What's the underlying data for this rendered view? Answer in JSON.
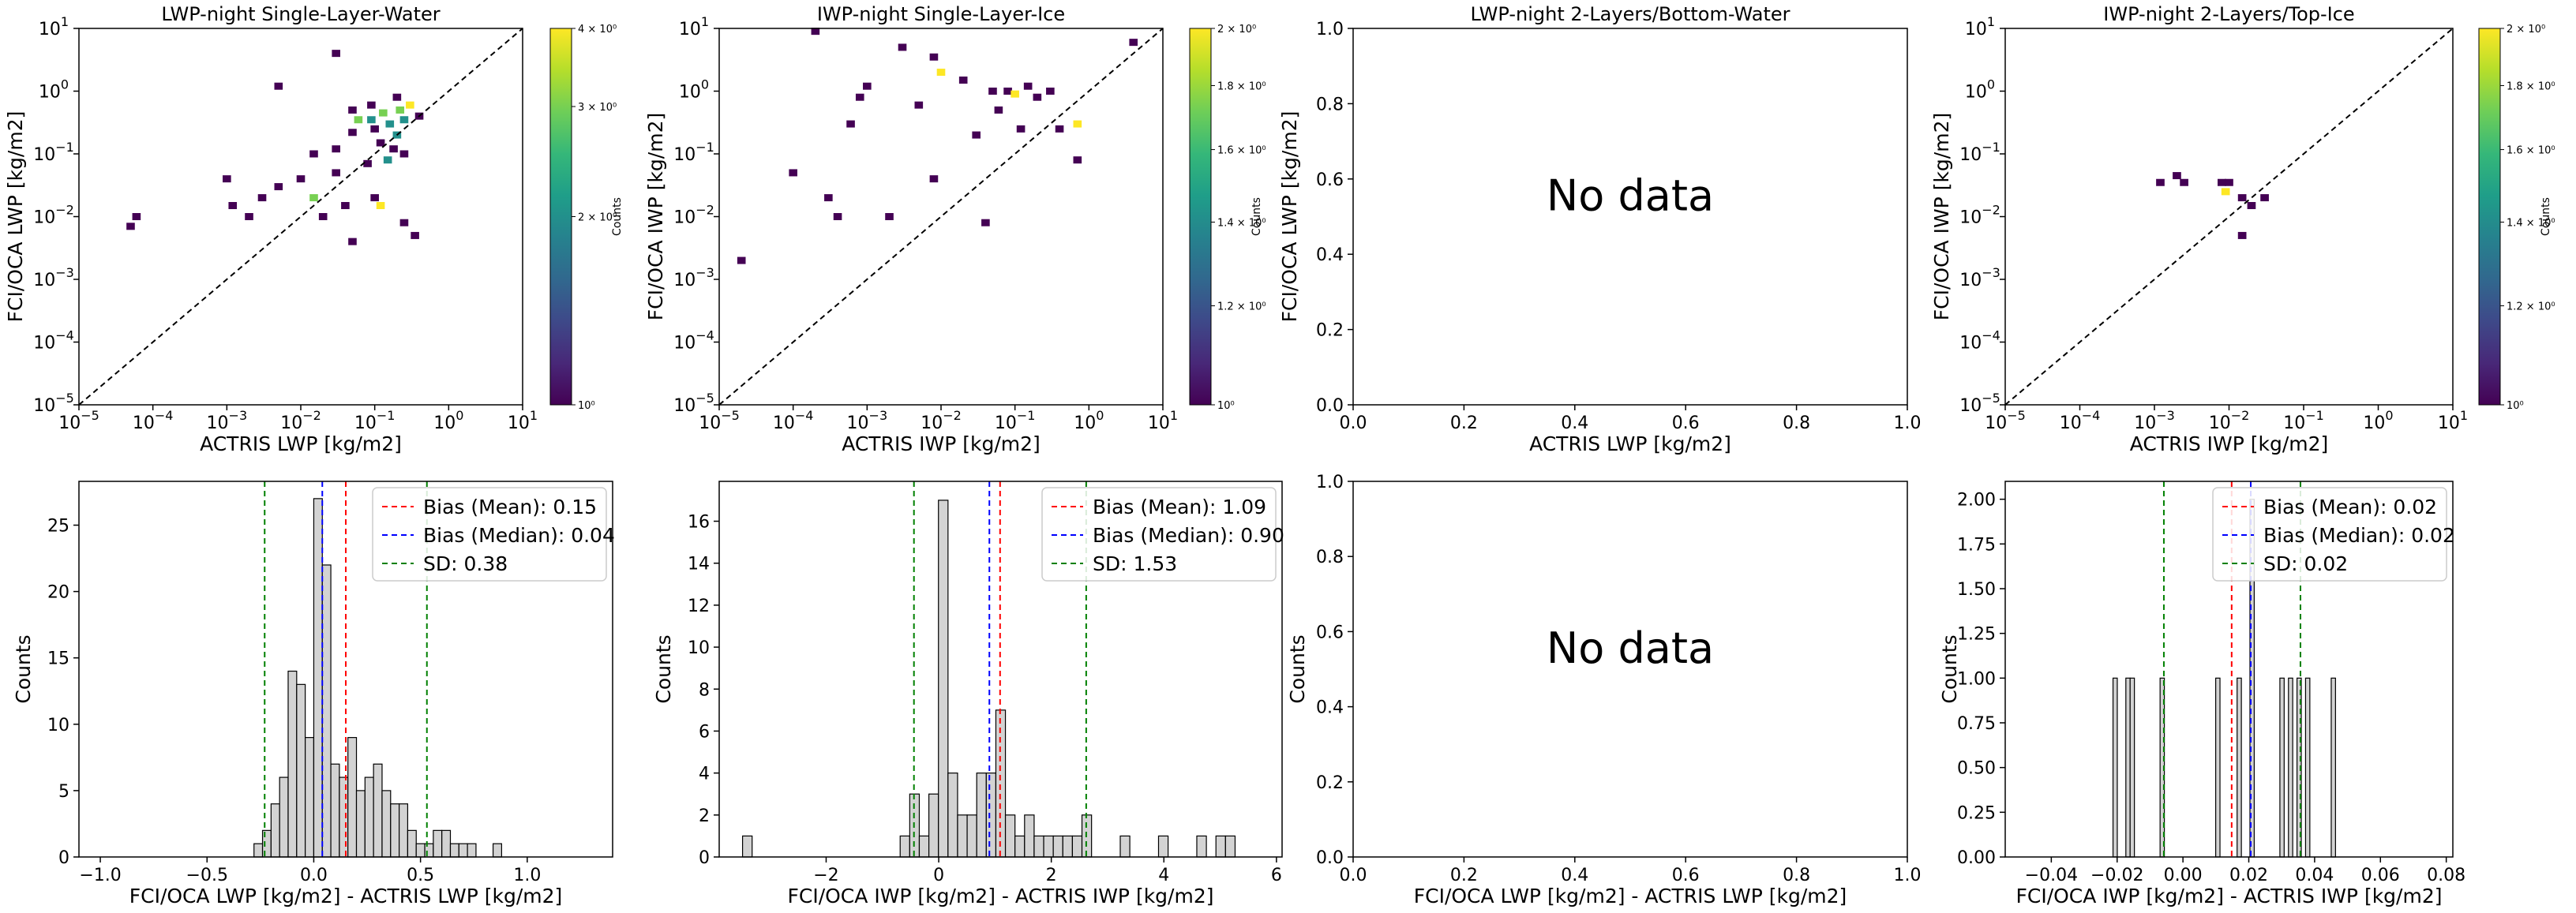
{
  "colors": {
    "viridis": [
      "#440154",
      "#482878",
      "#3e4989",
      "#31688e",
      "#26828e",
      "#1f9e89",
      "#35b779",
      "#6ece58",
      "#b5de2b",
      "#fde725"
    ],
    "hist_fill": "#d3d3d3",
    "mean_line": "#ff0000",
    "median_line": "#0000ff",
    "sd_line": "#008000",
    "one_to_one": "#000000"
  },
  "chart_data": [
    {
      "type": "heatmap",
      "title": "LWP-night Single-Layer-Water",
      "xlabel": "ACTRIS LWP [kg/m2]",
      "ylabel": "FCI/OCA LWP [kg/m2]",
      "xscale": "log",
      "yscale": "log",
      "xlim": [
        1e-05,
        10
      ],
      "ylim": [
        1e-05,
        10
      ],
      "one_to_one_line": true,
      "colorbar": {
        "label": "Counts",
        "scale": "log",
        "range": [
          1,
          4
        ],
        "ticks": [
          1,
          2,
          3,
          4
        ],
        "tick_labels": [
          "10⁰",
          "2 × 10⁰",
          "3 × 10⁰",
          "4 × 10⁰"
        ]
      },
      "cells": [
        [
          0.03,
          4.0,
          1
        ],
        [
          0.005,
          1.2,
          1
        ],
        [
          0.2,
          0.8,
          1
        ],
        [
          0.3,
          0.6,
          4
        ],
        [
          0.22,
          0.5,
          3
        ],
        [
          0.13,
          0.45,
          3
        ],
        [
          0.09,
          0.35,
          2
        ],
        [
          0.06,
          0.35,
          3
        ],
        [
          0.16,
          0.3,
          2
        ],
        [
          0.25,
          0.35,
          2
        ],
        [
          0.1,
          0.25,
          1
        ],
        [
          0.05,
          0.22,
          1
        ],
        [
          0.2,
          0.2,
          2
        ],
        [
          0.12,
          0.15,
          1
        ],
        [
          0.03,
          0.12,
          1
        ],
        [
          0.015,
          0.1,
          1
        ],
        [
          0.15,
          0.08,
          2
        ],
        [
          0.08,
          0.07,
          1
        ],
        [
          0.25,
          0.1,
          1
        ],
        [
          0.03,
          0.05,
          1
        ],
        [
          0.01,
          0.04,
          1
        ],
        [
          0.005,
          0.03,
          1
        ],
        [
          0.003,
          0.02,
          1
        ],
        [
          0.1,
          0.02,
          1
        ],
        [
          0.12,
          0.015,
          4
        ],
        [
          0.04,
          0.015,
          1
        ],
        [
          0.02,
          0.01,
          1
        ],
        [
          0.0012,
          0.015,
          1
        ],
        [
          0.002,
          0.01,
          1
        ],
        [
          0.25,
          0.008,
          1
        ],
        [
          0.35,
          0.005,
          1
        ],
        [
          0.05,
          0.004,
          1
        ],
        [
          6e-05,
          0.01,
          1
        ],
        [
          5e-05,
          0.007,
          1
        ],
        [
          0.4,
          0.4,
          1
        ],
        [
          0.001,
          0.04,
          1
        ],
        [
          0.015,
          0.02,
          3
        ],
        [
          0.05,
          0.5,
          1
        ],
        [
          0.18,
          0.12,
          1
        ],
        [
          0.09,
          0.6,
          1
        ]
      ]
    },
    {
      "type": "heatmap",
      "title": "IWP-night Single-Layer-Ice",
      "xlabel": "ACTRIS IWP [kg/m2]",
      "ylabel": "FCI/OCA IWP [kg/m2]",
      "xscale": "log",
      "yscale": "log",
      "xlim": [
        1e-05,
        10
      ],
      "ylim": [
        1e-05,
        10
      ],
      "one_to_one_line": true,
      "colorbar": {
        "label": "Counts",
        "scale": "log",
        "range": [
          1,
          2
        ],
        "ticks": [
          1,
          1.2,
          1.4,
          1.6,
          1.8,
          2
        ],
        "tick_labels": [
          "10⁰",
          "1.2 × 10⁰",
          "1.4 × 10⁰",
          "1.6 × 10⁰",
          "1.8 × 10⁰",
          "2 × 10⁰"
        ]
      },
      "cells": [
        [
          0.0002,
          9.0,
          1
        ],
        [
          0.003,
          5.0,
          1
        ],
        [
          0.008,
          3.5,
          1
        ],
        [
          0.01,
          2.0,
          2
        ],
        [
          0.02,
          1.5,
          1
        ],
        [
          0.15,
          1.2,
          1
        ],
        [
          0.08,
          1.0,
          1
        ],
        [
          0.1,
          0.9,
          2
        ],
        [
          0.2,
          0.8,
          1
        ],
        [
          4.0,
          6.0,
          1
        ],
        [
          0.0008,
          0.8,
          1
        ],
        [
          0.005,
          0.6,
          1
        ],
        [
          0.06,
          0.5,
          1
        ],
        [
          0.0006,
          0.3,
          1
        ],
        [
          0.03,
          0.2,
          1
        ],
        [
          0.12,
          0.25,
          1
        ],
        [
          0.4,
          0.25,
          1
        ],
        [
          0.7,
          0.3,
          2
        ],
        [
          0.0001,
          0.05,
          1
        ],
        [
          0.0003,
          0.02,
          1
        ],
        [
          0.0004,
          0.01,
          1
        ],
        [
          0.002,
          0.01,
          1
        ],
        [
          0.04,
          0.008,
          1
        ],
        [
          2e-05,
          0.002,
          1
        ],
        [
          0.7,
          0.08,
          1
        ],
        [
          0.3,
          1.0,
          1
        ],
        [
          0.001,
          1.2,
          1
        ],
        [
          0.008,
          0.04,
          1
        ],
        [
          0.05,
          1.0,
          1
        ]
      ]
    },
    {
      "type": "heatmap",
      "title": "LWP-night 2-Layers/Bottom-Water",
      "xlabel": "ACTRIS LWP [kg/m2]",
      "ylabel": "FCI/OCA LWP [kg/m2]",
      "xlim": [
        0,
        1
      ],
      "ylim": [
        0,
        1
      ],
      "xticks": [
        "0.0",
        "0.2",
        "0.4",
        "0.6",
        "0.8",
        "1.0"
      ],
      "yticks": [
        "0.0",
        "0.2",
        "0.4",
        "0.6",
        "0.8",
        "1.0"
      ],
      "annotation": "No data",
      "cells": []
    },
    {
      "type": "heatmap",
      "title": "IWP-night 2-Layers/Top-Ice",
      "xlabel": "ACTRIS IWP [kg/m2]",
      "ylabel": "FCI/OCA IWP [kg/m2]",
      "xscale": "log",
      "yscale": "log",
      "xlim": [
        1e-05,
        10
      ],
      "ylim": [
        1e-05,
        10
      ],
      "one_to_one_line": true,
      "colorbar": {
        "label": "Counts",
        "scale": "log",
        "range": [
          1,
          2
        ],
        "ticks": [
          1,
          1.2,
          1.4,
          1.6,
          1.8,
          2
        ],
        "tick_labels": [
          "10⁰",
          "1.2 × 10⁰",
          "1.4 × 10⁰",
          "1.6 × 10⁰",
          "1.8 × 10⁰",
          "2 × 10⁰"
        ]
      },
      "cells": [
        [
          0.0012,
          0.035,
          1
        ],
        [
          0.002,
          0.045,
          1
        ],
        [
          0.0025,
          0.035,
          1
        ],
        [
          0.008,
          0.035,
          1
        ],
        [
          0.01,
          0.035,
          1
        ],
        [
          0.009,
          0.025,
          2
        ],
        [
          0.015,
          0.02,
          1
        ],
        [
          0.03,
          0.02,
          1
        ],
        [
          0.02,
          0.015,
          1
        ],
        [
          0.015,
          0.005,
          1
        ]
      ]
    },
    {
      "type": "bar",
      "xlabel": "FCI/OCA LWP [kg/m2] - ACTRIS LWP [kg/m2]",
      "ylabel": "Counts",
      "xlim": [
        -1.1,
        1.4
      ],
      "ylim": [
        0,
        28.3
      ],
      "xticks": [
        -1.0,
        -0.5,
        0.0,
        0.5,
        1.0
      ],
      "xtick_labels": [
        "−1.0",
        "−0.5",
        "0.0",
        "0.5",
        "1.0"
      ],
      "yticks": [
        0,
        5,
        10,
        15,
        20,
        25
      ],
      "bin_width": 0.04,
      "bins": [
        [
          -0.26,
          1
        ],
        [
          -0.22,
          2
        ],
        [
          -0.18,
          4
        ],
        [
          -0.14,
          6
        ],
        [
          -0.1,
          14
        ],
        [
          -0.06,
          13
        ],
        [
          -0.02,
          9
        ],
        [
          0.02,
          27
        ],
        [
          0.06,
          22
        ],
        [
          0.1,
          7
        ],
        [
          0.14,
          6
        ],
        [
          0.18,
          9
        ],
        [
          0.22,
          5
        ],
        [
          0.26,
          6
        ],
        [
          0.3,
          7
        ],
        [
          0.34,
          5
        ],
        [
          0.38,
          4
        ],
        [
          0.42,
          4
        ],
        [
          0.46,
          2
        ],
        [
          0.5,
          1
        ],
        [
          0.54,
          1
        ],
        [
          0.58,
          2
        ],
        [
          0.62,
          2
        ],
        [
          0.66,
          1
        ],
        [
          0.7,
          1
        ],
        [
          0.74,
          1
        ],
        [
          0.86,
          1
        ]
      ],
      "lines": {
        "mean": 0.15,
        "median": 0.04,
        "sd_low": -0.23,
        "sd_high": 0.53
      },
      "legend": [
        "Bias (Mean): 0.15",
        "Bias (Median): 0.04",
        "SD: 0.38"
      ],
      "legend_position": "top-right"
    },
    {
      "type": "bar",
      "xlabel": "FCI/OCA IWP [kg/m2] - ACTRIS IWP [kg/m2]",
      "ylabel": "Counts",
      "xlim": [
        -3.9,
        6.1
      ],
      "ylim": [
        0,
        17.9
      ],
      "xticks": [
        -2,
        0,
        2,
        4,
        6
      ],
      "xtick_labels": [
        "−2",
        "0",
        "2",
        "4",
        "6"
      ],
      "yticks": [
        0,
        2,
        4,
        6,
        8,
        10,
        12,
        14,
        16
      ],
      "bin_width": 0.17,
      "bins": [
        [
          -3.4,
          1
        ],
        [
          -0.6,
          1
        ],
        [
          -0.43,
          3
        ],
        [
          -0.26,
          1
        ],
        [
          -0.09,
          3
        ],
        [
          0.08,
          17
        ],
        [
          0.25,
          4
        ],
        [
          0.42,
          2
        ],
        [
          0.59,
          2
        ],
        [
          0.76,
          4
        ],
        [
          0.93,
          4
        ],
        [
          1.1,
          7
        ],
        [
          1.27,
          2
        ],
        [
          1.44,
          1
        ],
        [
          1.61,
          2
        ],
        [
          1.78,
          1
        ],
        [
          1.95,
          1
        ],
        [
          2.12,
          1
        ],
        [
          2.29,
          1
        ],
        [
          2.46,
          1
        ],
        [
          2.63,
          2
        ],
        [
          3.31,
          1
        ],
        [
          3.99,
          1
        ],
        [
          4.67,
          1
        ],
        [
          5.01,
          1
        ],
        [
          5.18,
          1
        ]
      ],
      "lines": {
        "mean": 1.09,
        "median": 0.9,
        "sd_low": -0.44,
        "sd_high": 2.62
      },
      "legend": [
        "Bias (Mean): 1.09",
        "Bias (Median): 0.90",
        "SD: 1.53"
      ],
      "legend_position": "top-right"
    },
    {
      "type": "bar",
      "xlabel": "FCI/OCA LWP [kg/m2] - ACTRIS LWP [kg/m2]",
      "ylabel": "Counts",
      "xlim": [
        0,
        1
      ],
      "ylim": [
        0,
        1
      ],
      "xticks": [
        "0.0",
        "0.2",
        "0.4",
        "0.6",
        "0.8",
        "1.0"
      ],
      "yticks": [
        "0.0",
        "0.2",
        "0.4",
        "0.6",
        "0.8",
        "1.0"
      ],
      "annotation": "No data",
      "bins": []
    },
    {
      "type": "bar",
      "xlabel": "FCI/OCA IWP [kg/m2] - ACTRIS IWP [kg/m2]",
      "ylabel": "Counts",
      "xlim": [
        -0.054,
        0.082
      ],
      "ylim": [
        0,
        2.1
      ],
      "xticks": [
        -0.04,
        -0.02,
        0.0,
        0.02,
        0.04,
        0.06,
        0.08
      ],
      "xtick_labels": [
        "−0.04",
        "−0.02",
        "0.00",
        "0.02",
        "0.04",
        "0.06",
        "0.08"
      ],
      "yticks": [
        0.0,
        0.25,
        0.5,
        0.75,
        1.0,
        1.25,
        1.5,
        1.75,
        2.0
      ],
      "ytick_labels": [
        "0.00",
        "0.25",
        "0.50",
        "0.75",
        "1.00",
        "1.25",
        "1.50",
        "1.75",
        "2.00"
      ],
      "bin_width": 0.0013,
      "bins": [
        [
          -0.0206,
          1
        ],
        [
          -0.0167,
          1
        ],
        [
          -0.0154,
          1
        ],
        [
          -0.0063,
          1
        ],
        [
          0.0106,
          1
        ],
        [
          0.0171,
          1
        ],
        [
          0.021,
          2
        ],
        [
          0.0301,
          1
        ],
        [
          0.0327,
          1
        ],
        [
          0.0353,
          1
        ],
        [
          0.0379,
          1
        ],
        [
          0.0457,
          1
        ]
      ],
      "lines": {
        "mean": 0.0148,
        "median": 0.0206,
        "sd_low": -0.0058,
        "sd_high": 0.0357
      },
      "legend": [
        "Bias (Mean): 0.02",
        "Bias (Median): 0.02",
        "SD: 0.02"
      ],
      "legend_position": "top-right"
    }
  ]
}
